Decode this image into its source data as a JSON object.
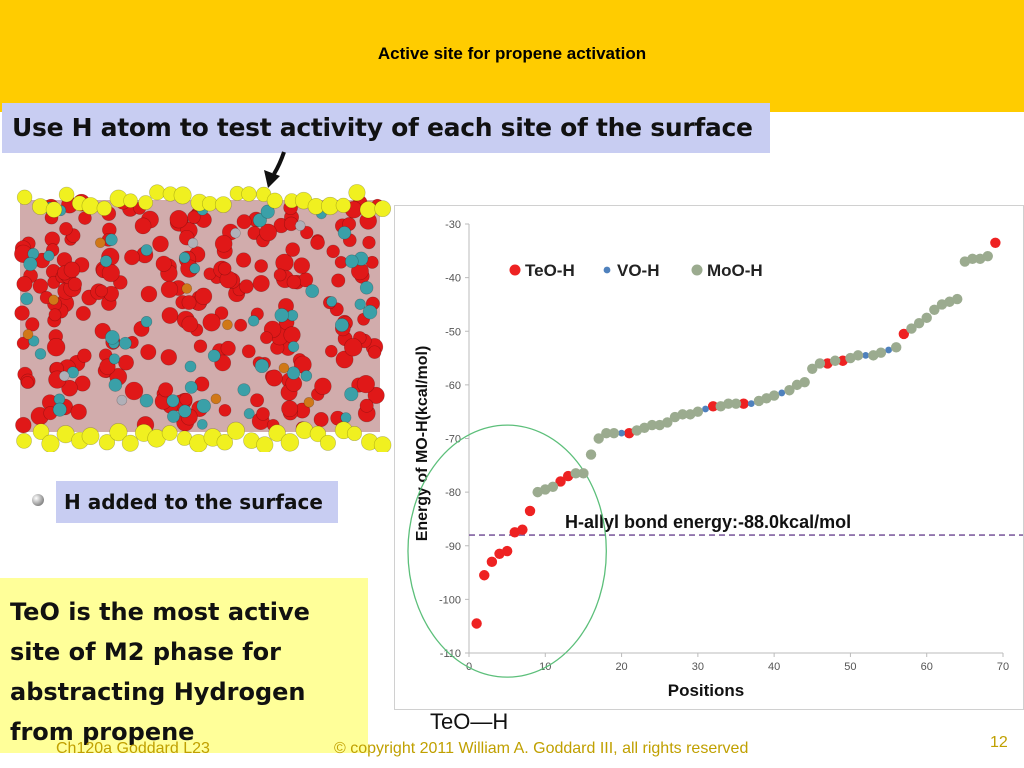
{
  "slide": {
    "title": "Active site for propene activation",
    "callout_top": "Use H atom to test activity of each site of the surface",
    "h_added": "H added to the surface",
    "teo_box_lines": [
      "TeO is the most active",
      "site of M2 phase for",
      "abstracting Hydrogen",
      "from propene"
    ],
    "teo_h_label": "TeO—H",
    "footer_left": "Ch120a Goddard L23",
    "footer_center": "© copyright 2011 William A. Goddard III, all rights reserved",
    "page_number": "12",
    "colors": {
      "band": "#ffcc00",
      "callout": "#c8cdf2",
      "note": "#ffff99",
      "footer": "#c0a000"
    }
  },
  "chart_data": {
    "type": "scatter",
    "xlabel": "Positions",
    "ylabel": "Energy of MO-H(kcal/mol)",
    "xlim": [
      0,
      70
    ],
    "ylim": [
      -110,
      -30
    ],
    "xticks": [
      "0",
      "10",
      "20",
      "30",
      "40",
      "50",
      "60",
      "70"
    ],
    "yticks": [
      "-30",
      "-40",
      "-50",
      "-60",
      "-70",
      "-80",
      "-90",
      "-100",
      "-110"
    ],
    "grid": false,
    "legend_position": "top-left",
    "reference_line": {
      "y": -88,
      "label": "H-allyl bond energy:-88.0kcal/mol",
      "color": "#8060a0"
    },
    "highlight": {
      "shape": "ellipse",
      "color": "#5cbf7a",
      "center": [
        5,
        -91
      ],
      "x_half_width": 13,
      "y_half_height": 23.5
    },
    "series": [
      {
        "name": "TeO-H",
        "color": "#ee2222",
        "points": [
          [
            1,
            -104.5
          ],
          [
            2,
            -95.5
          ],
          [
            3,
            -93
          ],
          [
            4,
            -91.5
          ],
          [
            5,
            -91
          ],
          [
            6,
            -87.5
          ],
          [
            7,
            -87
          ],
          [
            8,
            -83.5
          ],
          [
            12,
            -78
          ],
          [
            13,
            -77
          ],
          [
            21,
            -69
          ],
          [
            32,
            -64
          ],
          [
            36,
            -63.5
          ],
          [
            47,
            -56
          ],
          [
            49,
            -55.5
          ],
          [
            57,
            -50.5
          ],
          [
            69,
            -33.5
          ]
        ]
      },
      {
        "name": "VO-H",
        "color": "#4f81bd",
        "points": [
          [
            20,
            -69
          ],
          [
            31,
            -64.5
          ],
          [
            37,
            -63.5
          ],
          [
            41,
            -61.5
          ],
          [
            52,
            -54.5
          ],
          [
            55,
            -53.5
          ]
        ]
      },
      {
        "name": "MoO-H",
        "color": "#9bab8f",
        "points": [
          [
            9,
            -80
          ],
          [
            10,
            -79.5
          ],
          [
            11,
            -79
          ],
          [
            14,
            -76.5
          ],
          [
            15,
            -76.5
          ],
          [
            16,
            -73
          ],
          [
            17,
            -70
          ],
          [
            18,
            -69
          ],
          [
            19,
            -69
          ],
          [
            22,
            -68.5
          ],
          [
            23,
            -68
          ],
          [
            24,
            -67.5
          ],
          [
            25,
            -67.5
          ],
          [
            26,
            -67
          ],
          [
            27,
            -66
          ],
          [
            28,
            -65.5
          ],
          [
            29,
            -65.5
          ],
          [
            30,
            -65
          ],
          [
            33,
            -64
          ],
          [
            34,
            -63.5
          ],
          [
            35,
            -63.5
          ],
          [
            38,
            -63
          ],
          [
            39,
            -62.5
          ],
          [
            40,
            -62
          ],
          [
            42,
            -61
          ],
          [
            43,
            -60
          ],
          [
            44,
            -59.5
          ],
          [
            45,
            -57
          ],
          [
            46,
            -56
          ],
          [
            48,
            -55.5
          ],
          [
            50,
            -55
          ],
          [
            51,
            -54.5
          ],
          [
            53,
            -54.5
          ],
          [
            54,
            -54
          ],
          [
            56,
            -53
          ],
          [
            58,
            -49.5
          ],
          [
            59,
            -48.5
          ],
          [
            60,
            -47.5
          ],
          [
            61,
            -46
          ],
          [
            62,
            -45
          ],
          [
            63,
            -44.5
          ],
          [
            64,
            -44
          ],
          [
            65,
            -37
          ],
          [
            66,
            -36.5
          ],
          [
            67,
            -36.5
          ],
          [
            68,
            -36
          ]
        ]
      }
    ]
  }
}
